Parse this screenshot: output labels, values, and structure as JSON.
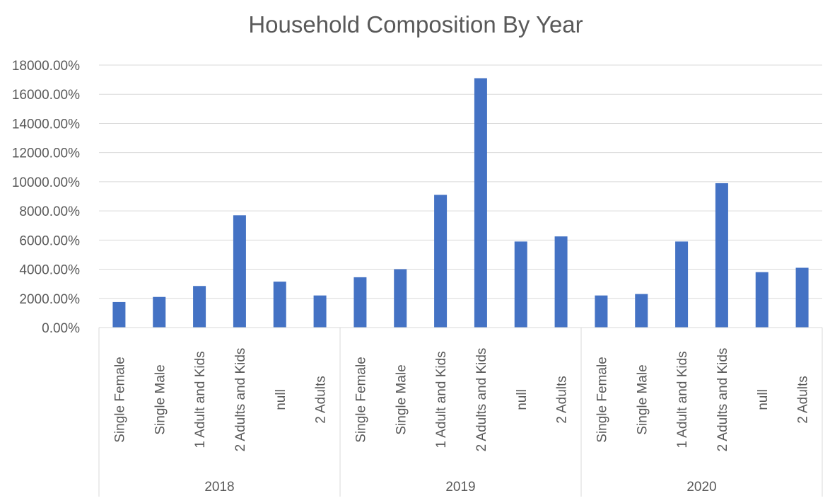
{
  "chart_data": {
    "type": "bar",
    "title": "Household Composition By Year",
    "xlabel": "",
    "ylabel": "",
    "ylim": [
      0,
      18000
    ],
    "y_ticks": [
      "0.00%",
      "2000.00%",
      "4000.00%",
      "6000.00%",
      "8000.00%",
      "10000.00%",
      "12000.00%",
      "14000.00%",
      "16000.00%",
      "18000.00%"
    ],
    "y_tick_values": [
      0,
      2000,
      4000,
      6000,
      8000,
      10000,
      12000,
      14000,
      16000,
      18000
    ],
    "grid": true,
    "legend": "none",
    "bar_color": "#4472c4",
    "groups": [
      {
        "label": "2018",
        "categories": [
          "Single Female",
          "Single Male",
          "1 Adult and Kids",
          "2 Adults and Kids",
          "null",
          "2 Adults"
        ],
        "values": [
          1750,
          2100,
          2850,
          7700,
          3150,
          2200
        ]
      },
      {
        "label": "2019",
        "categories": [
          "Single Female",
          "Single Male",
          "1 Adult and Kids",
          "2 Adults and Kids",
          "null",
          "2 Adults"
        ],
        "values": [
          3450,
          4000,
          9100,
          17100,
          5900,
          6250
        ]
      },
      {
        "label": "2020",
        "categories": [
          "Single Female",
          "Single Male",
          "1 Adult and Kids",
          "2 Adults and Kids",
          "null",
          "2 Adults"
        ],
        "values": [
          2200,
          2300,
          5900,
          9900,
          3800,
          4100
        ]
      }
    ]
  }
}
